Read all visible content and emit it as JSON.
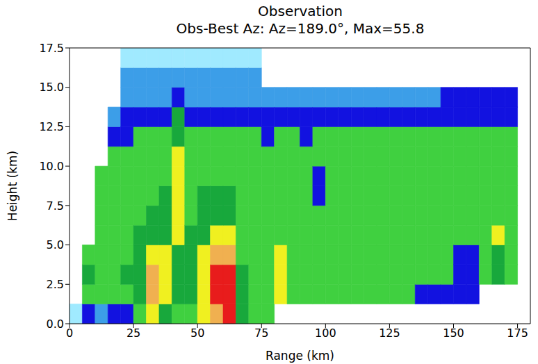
{
  "chart_data": {
    "type": "heatmap",
    "title": "Observation",
    "subtitle": "Obs-Best Az: Az=189.0°, Max=55.8",
    "x_label": "Range (km)",
    "y_label": "Height (km)",
    "xlim": [
      0,
      180
    ],
    "xticks": [
      0,
      25,
      50,
      75,
      100,
      125,
      150,
      175
    ],
    "ylim": [
      0,
      17.5
    ],
    "yticks": [
      {
        "value": 0,
        "label": "0.0"
      },
      2.5,
      {
        "value": 5,
        "label": "5.0"
      },
      7.5,
      {
        "value": 10,
        "label": "10.0"
      },
      12.5,
      {
        "value": 15,
        "label": "15.0"
      },
      17.5
    ],
    "grid": false,
    "range_bins": [
      0,
      5,
      10,
      15,
      20,
      25,
      30,
      35,
      40,
      45,
      50,
      55,
      60,
      65,
      70,
      75,
      80,
      85,
      90,
      95,
      100,
      105,
      110,
      115,
      120,
      125,
      130,
      135,
      140,
      145,
      150,
      155,
      160,
      165,
      170,
      175,
      180
    ],
    "height_bins": [
      0,
      1.25,
      2.5,
      3.75,
      5,
      6.25,
      7.5,
      8.75,
      10,
      11.25,
      12.5,
      13.75,
      15,
      16.25,
      17.5
    ],
    "color_levels": [
      {
        "min": 0,
        "color": "#a0eaff"
      },
      {
        "min": 8,
        "color": "#3c9ee8"
      },
      {
        "min": 14,
        "color": "#1212e0"
      },
      {
        "min": 20,
        "color": "#40d040"
      },
      {
        "min": 28,
        "color": "#18a83c"
      },
      {
        "min": 38,
        "color": "#f0f020"
      },
      {
        "min": 45,
        "color": "#f0b050"
      },
      {
        "min": 50,
        "color": "#e81c1c"
      }
    ],
    "values": [
      [
        5,
        null,
        null,
        null,
        null,
        null,
        null,
        null,
        null,
        null,
        null,
        null,
        null,
        null
      ],
      [
        15,
        22,
        28,
        22,
        null,
        null,
        null,
        null,
        null,
        null,
        null,
        null,
        null,
        null
      ],
      [
        12,
        24,
        26,
        25,
        24,
        22,
        22,
        20,
        null,
        null,
        null,
        null,
        null,
        null
      ],
      [
        14,
        25,
        27,
        26,
        25,
        24,
        24,
        23,
        22,
        17,
        10,
        null,
        null,
        null
      ],
      [
        16,
        26,
        28,
        27,
        26,
        25,
        25,
        24,
        23,
        18,
        15,
        10,
        8,
        5
      ],
      [
        22,
        30,
        33,
        30,
        28,
        26,
        26,
        25,
        24,
        20,
        15,
        10,
        8,
        5
      ],
      [
        40,
        48,
        45,
        40,
        34,
        28,
        27,
        26,
        25,
        22,
        16,
        10,
        8,
        5
      ],
      [
        30,
        38,
        42,
        38,
        34,
        30,
        28,
        27,
        26,
        22,
        16,
        10,
        8,
        4
      ],
      [
        26,
        30,
        34,
        36,
        38,
        40,
        44,
        40,
        38,
        35,
        30,
        18,
        10,
        6
      ],
      [
        26,
        30,
        32,
        30,
        28,
        27,
        26,
        25,
        24,
        22,
        18,
        12,
        10,
        6
      ],
      [
        38,
        42,
        40,
        38,
        34,
        30,
        28,
        26,
        25,
        22,
        17,
        12,
        10,
        5
      ],
      [
        48,
        52,
        50,
        46,
        42,
        36,
        30,
        27,
        25,
        22,
        17,
        12,
        10,
        6
      ],
      [
        52,
        54,
        50,
        46,
        40,
        34,
        28,
        26,
        25,
        22,
        17,
        12,
        10,
        6
      ],
      [
        28,
        30,
        28,
        27,
        26,
        25,
        24,
        24,
        23,
        20,
        16,
        12,
        10,
        5
      ],
      [
        24,
        26,
        26,
        25,
        25,
        24,
        24,
        23,
        22,
        20,
        16,
        12,
        9,
        5
      ],
      [
        24,
        26,
        26,
        25,
        24,
        24,
        23,
        23,
        22,
        19,
        16,
        10,
        null,
        null
      ],
      [
        null,
        40,
        40,
        38,
        26,
        24,
        23,
        23,
        22,
        20,
        16,
        10,
        null,
        null
      ],
      [
        null,
        25,
        26,
        25,
        24,
        24,
        23,
        22,
        22,
        20,
        16,
        10,
        null,
        null
      ],
      [
        null,
        24,
        24,
        24,
        24,
        23,
        23,
        22,
        22,
        18,
        16,
        10,
        null,
        null
      ],
      [
        null,
        24,
        24,
        24,
        23,
        22,
        18,
        16,
        20,
        20,
        16,
        10,
        null,
        null
      ],
      [
        null,
        24,
        24,
        24,
        23,
        22,
        22,
        22,
        22,
        20,
        16,
        10,
        null,
        null
      ],
      [
        null,
        24,
        24,
        24,
        23,
        22,
        22,
        22,
        22,
        20,
        16,
        10,
        null,
        null
      ],
      [
        null,
        24,
        24,
        24,
        23,
        22,
        22,
        22,
        22,
        20,
        16,
        10,
        null,
        null
      ],
      [
        null,
        24,
        24,
        24,
        23,
        22,
        22,
        22,
        22,
        20,
        16,
        10,
        null,
        null
      ],
      [
        null,
        22,
        24,
        24,
        23,
        22,
        22,
        22,
        22,
        20,
        16,
        10,
        null,
        null
      ],
      [
        null,
        20,
        24,
        24,
        23,
        22,
        22,
        22,
        22,
        20,
        16,
        10,
        null,
        null
      ],
      [
        null,
        20,
        24,
        24,
        23,
        22,
        22,
        22,
        22,
        20,
        16,
        10,
        null,
        null
      ],
      [
        null,
        18,
        24,
        24,
        23,
        22,
        22,
        22,
        22,
        20,
        17,
        10,
        null,
        null
      ],
      [
        null,
        16,
        22,
        24,
        23,
        22,
        22,
        22,
        22,
        20,
        17,
        12,
        null,
        null
      ],
      [
        null,
        16,
        22,
        24,
        23,
        22,
        22,
        22,
        22,
        20,
        17,
        16,
        null,
        null
      ],
      [
        null,
        16,
        16,
        18,
        23,
        22,
        22,
        22,
        22,
        20,
        17,
        16,
        null,
        null
      ],
      [
        null,
        15,
        15,
        17,
        22,
        22,
        22,
        22,
        22,
        20,
        17,
        16,
        null,
        null
      ],
      [
        null,
        null,
        22,
        24,
        26,
        22,
        22,
        22,
        22,
        20,
        17,
        15,
        null,
        null
      ],
      [
        null,
        null,
        30,
        36,
        38,
        24,
        22,
        22,
        22,
        20,
        17,
        14,
        null,
        null
      ],
      [
        null,
        null,
        22,
        22,
        22,
        22,
        22,
        22,
        22,
        20,
        16,
        14,
        null,
        null
      ],
      [
        null,
        null,
        null,
        null,
        null,
        null,
        null,
        null,
        null,
        null,
        null,
        null,
        null,
        null
      ]
    ]
  }
}
